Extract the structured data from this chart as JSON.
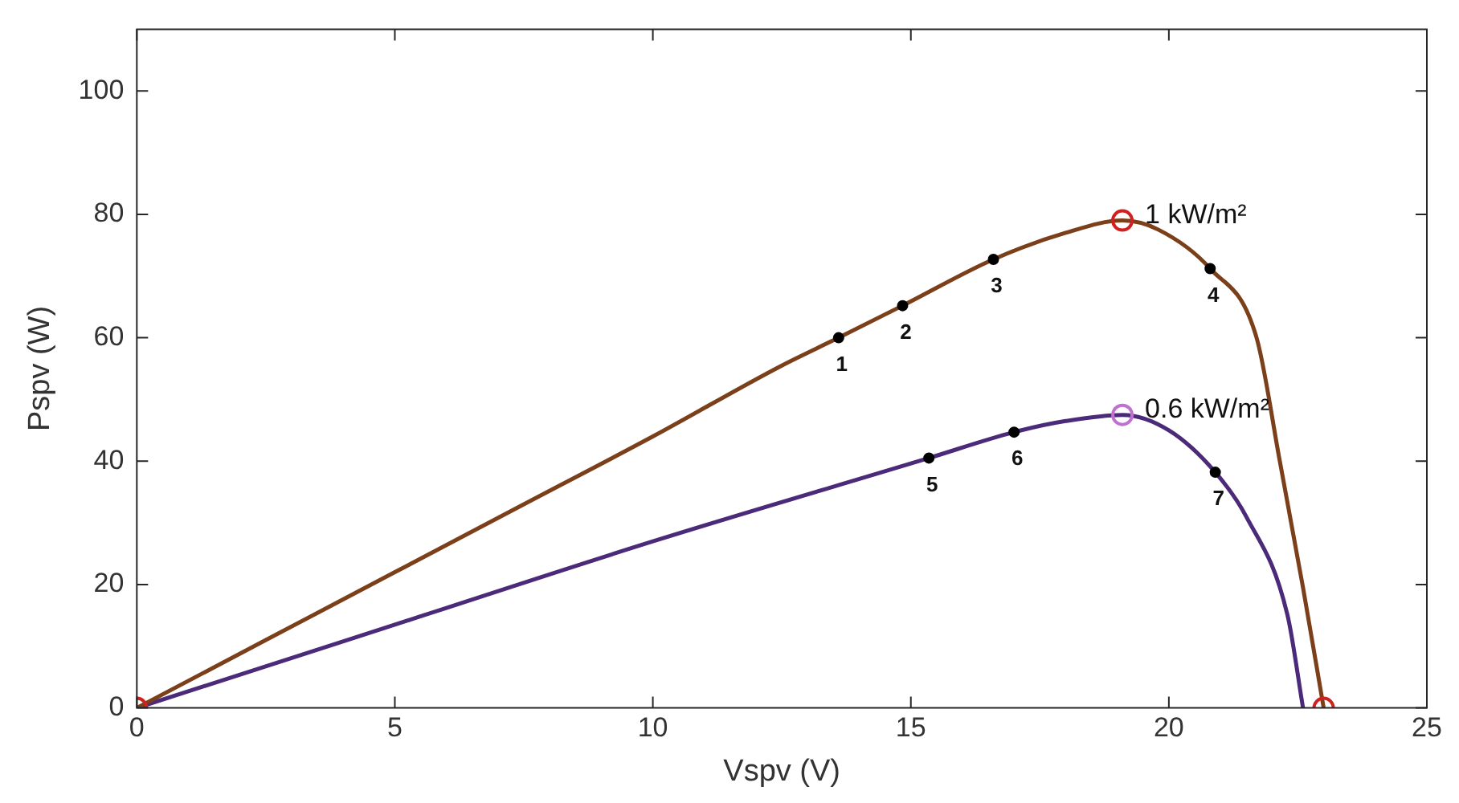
{
  "chart_data": {
    "type": "line",
    "xlabel": "Vspv (V)",
    "ylabel": "Pspv (W)",
    "xlim": [
      0,
      25
    ],
    "xticks": [
      0,
      5,
      10,
      15,
      20,
      25
    ],
    "ylim": [
      0,
      110
    ],
    "yticks": [
      0,
      20,
      40,
      60,
      80,
      100
    ],
    "grid": false,
    "legend": false,
    "series": [
      {
        "marker": "none",
        "color": "#7b3f1a",
        "x": [
          0,
          2.5,
          5,
          7.5,
          10,
          12.5,
          13.6,
          14.84,
          16.6,
          18,
          19.1,
          19.8,
          20.8,
          21.7,
          22.15,
          22.6,
          23
        ],
        "values": [
          0,
          11,
          22,
          33,
          44,
          55.5,
          60,
          65.2,
          72.7,
          77,
          79,
          77.5,
          71.2,
          60,
          40,
          19.5,
          0
        ]
      },
      {
        "marker": "none",
        "color": "#4b2a7a",
        "x": [
          0,
          5,
          10,
          15.35,
          17,
          18,
          19.1,
          20,
          20.9,
          21.5,
          22.3,
          22.6
        ],
        "values": [
          0,
          13.5,
          27,
          40.5,
          44.7,
          46.5,
          47.5,
          45,
          38.2,
          31,
          15,
          0
        ]
      },
      {
        "type": "scatter",
        "marker": "circle",
        "color": "#000000",
        "x": [
          13.6,
          14.84,
          16.6,
          20.8,
          15.35,
          17,
          20.9
        ],
        "values": [
          60,
          65.2,
          72.7,
          71.2,
          40.5,
          44.7,
          38.2
        ]
      },
      {
        "type": "scatter",
        "marker": "circle",
        "color": "#d02020",
        "x": [
          0,
          19.1,
          23
        ],
        "values": [
          0,
          79,
          0
        ]
      },
      {
        "type": "scatter",
        "marker": "circle",
        "color": "#c070d0",
        "x": [
          19.1
        ],
        "values": [
          47.5
        ]
      }
    ],
    "annotations": [
      {
        "text": "1",
        "x": 13.6,
        "y": 60
      },
      {
        "text": "2",
        "x": 14.84,
        "y": 65.2
      },
      {
        "text": "3",
        "x": 16.6,
        "y": 72.7
      },
      {
        "text": "4",
        "x": 20.8,
        "y": 71.2
      },
      {
        "text": "5",
        "x": 15.35,
        "y": 40.5
      },
      {
        "text": "6",
        "x": 17,
        "y": 44.7
      },
      {
        "text": "7",
        "x": 20.9,
        "y": 38.2
      },
      {
        "text": "1 kW/m²",
        "x": 19.1,
        "y": 79
      },
      {
        "text": "0.6 kW/m²",
        "x": 19.1,
        "y": 47.5
      }
    ]
  }
}
